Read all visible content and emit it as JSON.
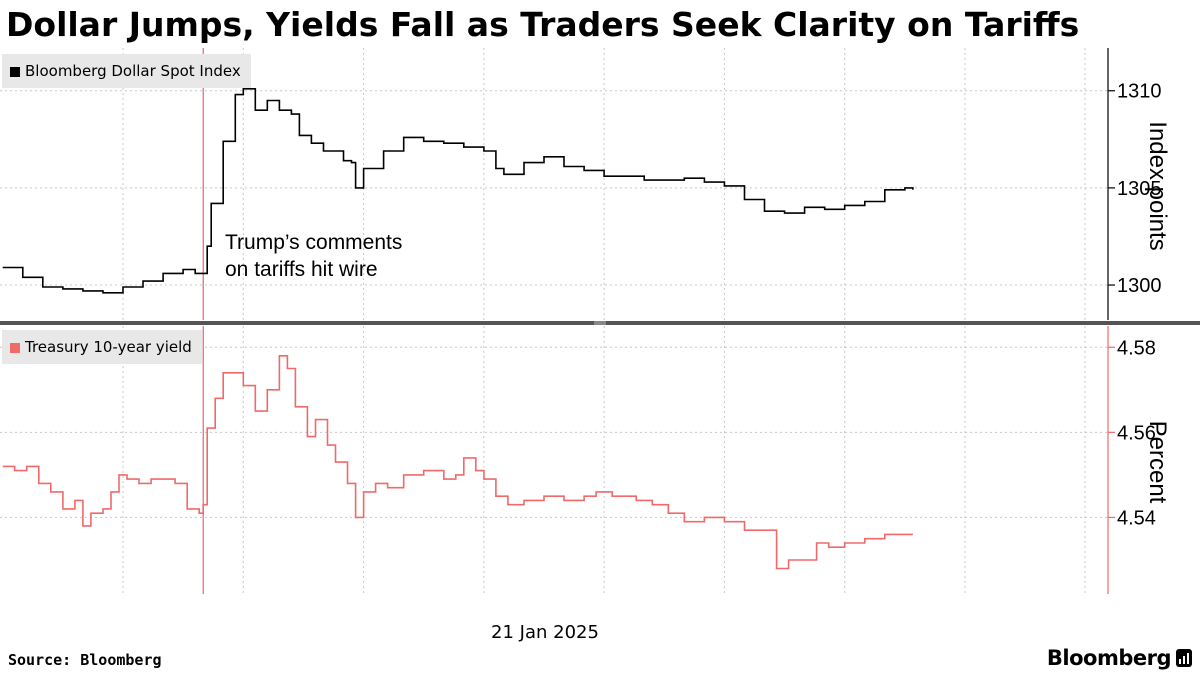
{
  "headline": "Dollar Jumps, Yields Fall as Traders Seek Clarity on Tariffs",
  "source": "Source: Bloomberg",
  "brand": "Bloomberg",
  "annotation": [
    "Trump’s comments",
    "on tariffs hit wire"
  ],
  "date_label": "21 Jan 2025",
  "colors": {
    "dollar": "#000000",
    "yield": "#f06a6a",
    "event_line": "#d9445e",
    "grid": "#c8c8c8",
    "divider": "#555555"
  },
  "icons": {
    "brand": "bloomberg-terminal-icon"
  },
  "chart_data": [
    {
      "type": "line",
      "title": "",
      "series": [
        {
          "name": "Bloomberg Dollar Spot Index"
        }
      ],
      "ylabel": "Index points",
      "ylim": [
        1298.2,
        1312.2
      ],
      "yticks": [
        "1300",
        "1305",
        "1310"
      ],
      "xlim": [
        "09:00",
        "13:30"
      ],
      "xticks": [
        "09:30",
        "10:00",
        "10:30",
        "11:00",
        "11:30",
        "12:00",
        "12:30",
        "13:00"
      ],
      "event_time": "09:50",
      "points": [
        [
          "09:00",
          1300.9
        ],
        [
          "09:05",
          1300.4
        ],
        [
          "09:10",
          1299.9
        ],
        [
          "09:15",
          1299.8
        ],
        [
          "09:20",
          1299.7
        ],
        [
          "09:25",
          1299.6
        ],
        [
          "09:30",
          1299.9
        ],
        [
          "09:35",
          1300.2
        ],
        [
          "09:40",
          1300.6
        ],
        [
          "09:45",
          1300.8
        ],
        [
          "09:48",
          1300.6
        ],
        [
          "09:50",
          1300.6
        ],
        [
          "09:51",
          1302.0
        ],
        [
          "09:52",
          1304.2
        ],
        [
          "09:55",
          1307.4
        ],
        [
          "09:58",
          1309.8
        ],
        [
          "10:00",
          1310.1
        ],
        [
          "10:03",
          1309.0
        ],
        [
          "10:06",
          1309.5
        ],
        [
          "10:09",
          1309.0
        ],
        [
          "10:12",
          1308.8
        ],
        [
          "10:14",
          1307.7
        ],
        [
          "10:17",
          1307.3
        ],
        [
          "10:20",
          1306.9
        ],
        [
          "10:25",
          1306.4
        ],
        [
          "10:27",
          1306.3
        ],
        [
          "10:28",
          1305.0
        ],
        [
          "10:30",
          1306.0
        ],
        [
          "10:35",
          1306.9
        ],
        [
          "10:40",
          1307.6
        ],
        [
          "10:45",
          1307.4
        ],
        [
          "10:50",
          1307.3
        ],
        [
          "10:55",
          1307.1
        ],
        [
          "11:00",
          1306.9
        ],
        [
          "11:03",
          1306.0
        ],
        [
          "11:05",
          1305.7
        ],
        [
          "11:10",
          1306.3
        ],
        [
          "11:15",
          1306.6
        ],
        [
          "11:20",
          1306.1
        ],
        [
          "11:25",
          1305.9
        ],
        [
          "11:30",
          1305.6
        ],
        [
          "11:40",
          1305.4
        ],
        [
          "11:45",
          1305.4
        ],
        [
          "11:50",
          1305.5
        ],
        [
          "11:55",
          1305.3
        ],
        [
          "12:00",
          1305.1
        ],
        [
          "12:05",
          1304.4
        ],
        [
          "12:10",
          1303.8
        ],
        [
          "12:15",
          1303.7
        ],
        [
          "12:20",
          1304.0
        ],
        [
          "12:25",
          1303.9
        ],
        [
          "12:30",
          1304.1
        ],
        [
          "12:35",
          1304.3
        ],
        [
          "12:40",
          1304.9
        ],
        [
          "12:45",
          1305.0
        ],
        [
          "12:47",
          1304.9
        ]
      ]
    },
    {
      "type": "line",
      "title": "",
      "series": [
        {
          "name": "Treasury 10-year yield"
        }
      ],
      "ylabel": "Percent",
      "ylim": [
        4.522,
        4.585
      ],
      "yticks": [
        "4.54",
        "4.56",
        "4.58"
      ],
      "xlim": [
        "09:00",
        "13:30"
      ],
      "xticks": [
        "09:30",
        "10:00",
        "10:30",
        "11:00",
        "11:30",
        "12:00",
        "12:30",
        "13:00"
      ],
      "event_time": "09:50",
      "points": [
        [
          "09:00",
          4.552
        ],
        [
          "09:03",
          4.551
        ],
        [
          "09:06",
          4.552
        ],
        [
          "09:09",
          4.548
        ],
        [
          "09:12",
          4.546
        ],
        [
          "09:15",
          4.542
        ],
        [
          "09:18",
          4.544
        ],
        [
          "09:20",
          4.538
        ],
        [
          "09:22",
          4.541
        ],
        [
          "09:25",
          4.542
        ],
        [
          "09:27",
          4.546
        ],
        [
          "09:29",
          4.55
        ],
        [
          "09:31",
          4.549
        ],
        [
          "09:34",
          4.548
        ],
        [
          "09:37",
          4.549
        ],
        [
          "09:40",
          4.549
        ],
        [
          "09:43",
          4.548
        ],
        [
          "09:46",
          4.542
        ],
        [
          "09:49",
          4.541
        ],
        [
          "09:50",
          4.543
        ],
        [
          "09:51",
          4.561
        ],
        [
          "09:53",
          4.568
        ],
        [
          "09:55",
          4.574
        ],
        [
          "09:58",
          4.574
        ],
        [
          "10:00",
          4.571
        ],
        [
          "10:03",
          4.565
        ],
        [
          "10:06",
          4.57
        ],
        [
          "10:09",
          4.578
        ],
        [
          "10:11",
          4.575
        ],
        [
          "10:13",
          4.566
        ],
        [
          "10:16",
          4.559
        ],
        [
          "10:18",
          4.563
        ],
        [
          "10:21",
          4.557
        ],
        [
          "10:23",
          4.553
        ],
        [
          "10:26",
          4.548
        ],
        [
          "10:28",
          4.54
        ],
        [
          "10:30",
          4.546
        ],
        [
          "10:33",
          4.548
        ],
        [
          "10:36",
          4.547
        ],
        [
          "10:40",
          4.55
        ],
        [
          "10:45",
          4.551
        ],
        [
          "10:50",
          4.549
        ],
        [
          "10:53",
          4.55
        ],
        [
          "10:55",
          4.554
        ],
        [
          "10:58",
          4.551
        ],
        [
          "11:00",
          4.549
        ],
        [
          "11:03",
          4.545
        ],
        [
          "11:06",
          4.543
        ],
        [
          "11:10",
          4.544
        ],
        [
          "11:15",
          4.545
        ],
        [
          "11:20",
          4.544
        ],
        [
          "11:25",
          4.545
        ],
        [
          "11:28",
          4.546
        ],
        [
          "11:32",
          4.545
        ],
        [
          "11:38",
          4.544
        ],
        [
          "11:42",
          4.543
        ],
        [
          "11:46",
          4.541
        ],
        [
          "11:50",
          4.539
        ],
        [
          "11:55",
          4.54
        ],
        [
          "12:00",
          4.539
        ],
        [
          "12:05",
          4.537
        ],
        [
          "12:10",
          4.537
        ],
        [
          "12:13",
          4.528
        ],
        [
          "12:16",
          4.53
        ],
        [
          "12:20",
          4.53
        ],
        [
          "12:23",
          4.534
        ],
        [
          "12:26",
          4.533
        ],
        [
          "12:30",
          4.534
        ],
        [
          "12:35",
          4.535
        ],
        [
          "12:40",
          4.536
        ],
        [
          "12:47",
          4.536
        ]
      ]
    }
  ]
}
